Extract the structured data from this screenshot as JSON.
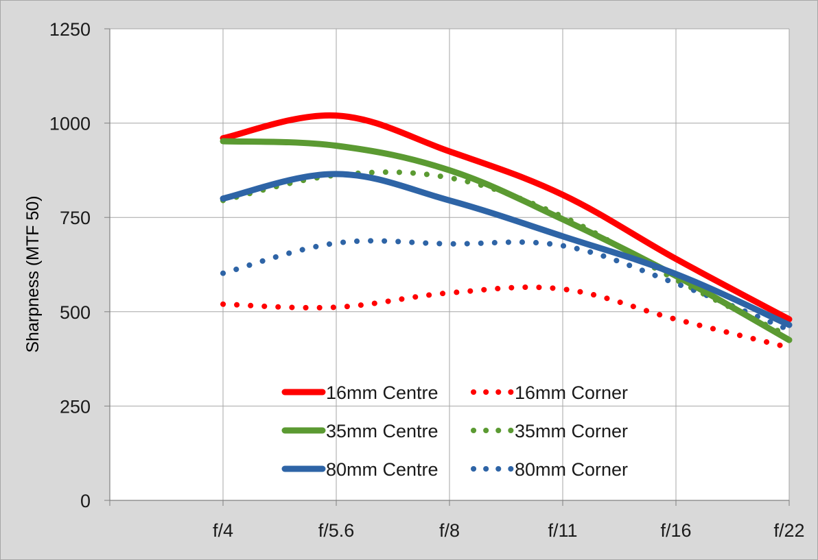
{
  "chart_data": {
    "type": "line",
    "title": "",
    "xlabel": "",
    "ylabel": "Sharpness  (MTF 50)",
    "categories": [
      "f/4",
      "f/5.6",
      "f/8",
      "f/11",
      "f/16",
      "f/22"
    ],
    "ylim": [
      0,
      1250
    ],
    "yticks": [
      0,
      250,
      500,
      750,
      1000,
      1250
    ],
    "grid": true,
    "legend_position": "bottom-center",
    "series": [
      {
        "name": "16mm Centre",
        "style": "solid",
        "color": "#ff0000",
        "values": [
          960,
          1020,
          925,
          810,
          640,
          480
        ]
      },
      {
        "name": "16mm Corner",
        "style": "dotted",
        "color": "#ff0000",
        "values": [
          520,
          512,
          550,
          560,
          480,
          405
        ]
      },
      {
        "name": "35mm Centre",
        "style": "solid",
        "color": "#5b9a32",
        "values": [
          952,
          940,
          875,
          745,
          595,
          425
        ]
      },
      {
        "name": "35mm Corner",
        "style": "dotted",
        "color": "#5b9a32",
        "values": [
          795,
          862,
          855,
          752,
          585,
          435
        ]
      },
      {
        "name": "80mm Centre",
        "style": "solid",
        "color": "#2e64a6",
        "values": [
          800,
          865,
          795,
          700,
          600,
          465
        ]
      },
      {
        "name": "80mm Corner",
        "style": "dotted",
        "color": "#2e64a6",
        "values": [
          602,
          682,
          680,
          675,
          575,
          452
        ]
      }
    ]
  }
}
